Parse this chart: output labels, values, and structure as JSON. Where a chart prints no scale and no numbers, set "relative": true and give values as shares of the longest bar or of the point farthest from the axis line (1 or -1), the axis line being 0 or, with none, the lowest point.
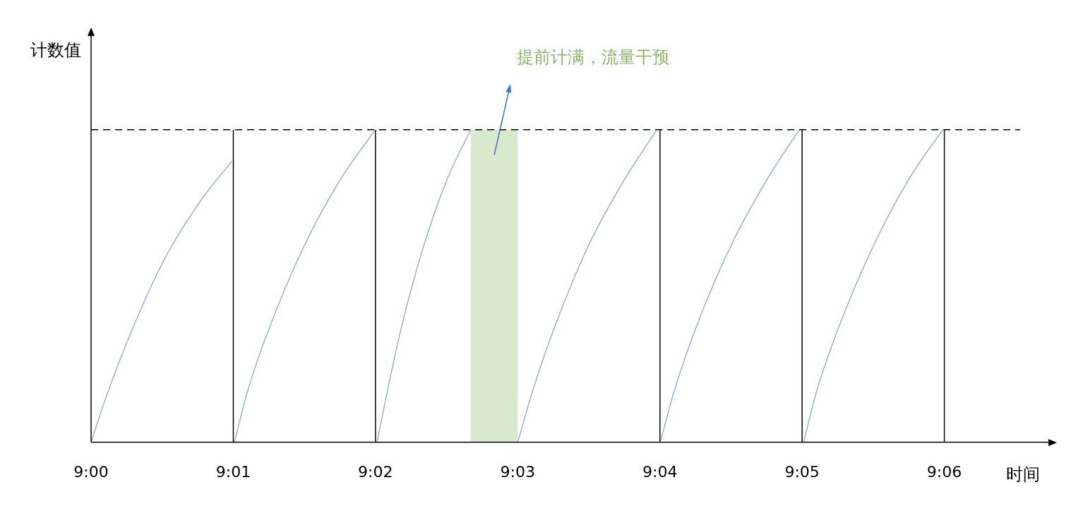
{
  "chart_data": {
    "type": "line",
    "relative": true,
    "xlabel": "时间",
    "ylabel": "计数值",
    "xlim": [
      9,
      9.1122
    ],
    "xticks": [
      {
        "value": 9,
        "label": "9:00"
      },
      {
        "value": 9.01667,
        "label": "9:01"
      },
      {
        "value": 9.03333,
        "label": "9:02"
      },
      {
        "value": 9.05,
        "label": "9:03"
      },
      {
        "value": 9.06667,
        "label": "9:04"
      },
      {
        "value": 9.08333,
        "label": "9:05"
      },
      {
        "value": 9.1,
        "label": "9:06"
      }
    ],
    "series": [
      {
        "color": "#7f9fd6",
        "x": [
          9,
          9.0017,
          9.0042,
          9.0083,
          9.0125,
          9.0165
        ],
        "values": [
          0,
          0.14,
          0.32,
          0.57,
          0.76,
          0.9
        ]
      },
      {
        "color": "#7f9fd6",
        "x": [
          9.0168,
          9.0183,
          9.0208,
          9.025,
          9.0292,
          9.0333
        ],
        "values": [
          0,
          0.16,
          0.36,
          0.63,
          0.84,
          1
        ]
      },
      {
        "color": "#7f9fd6",
        "x": [
          9.0335,
          9.0347,
          9.0363,
          9.039,
          9.0417,
          9.0445
        ],
        "values": [
          0,
          0.16,
          0.36,
          0.63,
          0.84,
          1
        ]
      },
      {
        "color": "#7f9fd6",
        "x": [
          9.05,
          9.0517,
          9.0542,
          9.0583,
          9.0625,
          9.0663
        ],
        "values": [
          0,
          0.16,
          0.36,
          0.63,
          0.84,
          1
        ]
      },
      {
        "color": "#7f9fd6",
        "x": [
          9.0667,
          9.0683,
          9.0708,
          9.075,
          9.0792,
          9.083
        ],
        "values": [
          0,
          0.16,
          0.36,
          0.63,
          0.84,
          1
        ]
      },
      {
        "color": "#7f9fd6",
        "x": [
          9.0835,
          9.085,
          9.0875,
          9.0917,
          9.0958,
          9.0998
        ],
        "values": [
          0,
          0.16,
          0.36,
          0.63,
          0.84,
          1
        ]
      }
    ],
    "ref_lines": [
      {
        "axis": "y",
        "value": 1,
        "color": "#000000",
        "line_style": "dashed"
      },
      {
        "axis": "x",
        "value": 9.01667,
        "color": "#000000"
      },
      {
        "axis": "x",
        "value": 9.03333,
        "color": "#000000"
      },
      {
        "axis": "x",
        "value": 9.06667,
        "color": "#000000"
      },
      {
        "axis": "x",
        "value": 9.08333,
        "color": "#000000"
      },
      {
        "axis": "x",
        "value": 9.1,
        "color": "#000000"
      }
    ],
    "bands": [
      {
        "axis": "x",
        "from": 9.0445,
        "to": 9.05,
        "color": "#a9d18e"
      }
    ],
    "annotations": [
      "提前计满，流量干预"
    ]
  }
}
